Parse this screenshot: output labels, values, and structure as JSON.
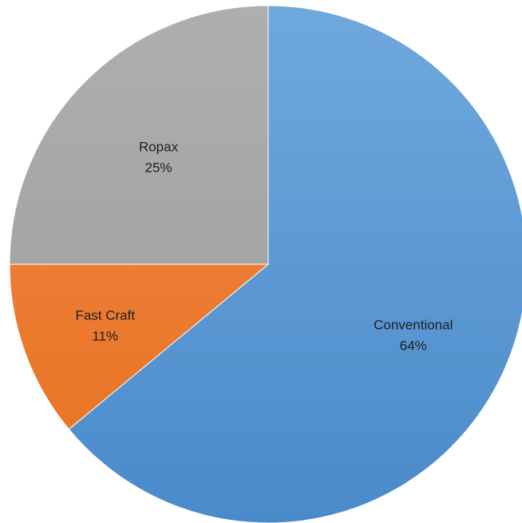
{
  "chart_data": {
    "type": "pie",
    "title": "",
    "start_angle_deg": 0,
    "direction": "clockwise",
    "slices": [
      {
        "label": "Conventional",
        "value": 64,
        "value_label": "64%",
        "color": "#5B9BD5",
        "color_light": "#6FA8DC",
        "color_dark": "#4A8ACB"
      },
      {
        "label": "Fast Craft",
        "value": 11,
        "value_label": "11%",
        "color": "#ED7D31",
        "color_light": "#F08A4B",
        "color_dark": "#E8701E"
      },
      {
        "label": "Ropax",
        "value": 25,
        "value_label": "25%",
        "color": "#A5A5A5",
        "color_light": "#AFAFAF",
        "color_dark": "#9A9A9A"
      }
    ],
    "legend": "none",
    "data_labels": "inside"
  }
}
